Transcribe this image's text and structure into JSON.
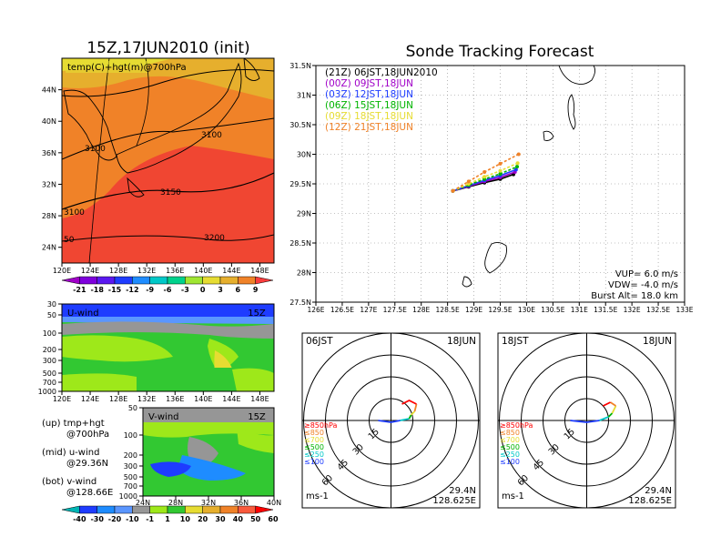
{
  "left_title": "15Z,17JUN2010 (init)",
  "right_title": "Sonde Tracking Forecast",
  "top_map": {
    "label": "temp(C)+hgt(m)@700hPa",
    "lat_ticks": [
      "44N",
      "40N",
      "36N",
      "32N",
      "28N",
      "24N"
    ],
    "lon_ticks": [
      "120E",
      "124E",
      "128E",
      "132E",
      "136E",
      "140E",
      "144E",
      "148E"
    ],
    "contour_labels": [
      "3100",
      "3100",
      "3150",
      "3100",
      "3200",
      "50"
    ]
  },
  "temp_colorbar": {
    "labels": [
      "-21",
      "-18",
      "-15",
      "-12",
      "-9",
      "-6",
      "-3",
      "0",
      "3",
      "6",
      "9"
    ],
    "colors": [
      "#a000c8",
      "#7e00dc",
      "#5a18f0",
      "#1e3cff",
      "#1e8cff",
      "#00c8c8",
      "#00d28c",
      "#a0e632",
      "#e6dc32",
      "#e6af2d",
      "#f08228",
      "#fa3c3c"
    ]
  },
  "u_panel": {
    "label": "U-wind",
    "time": "15Z",
    "p_ticks": [
      "30",
      "50",
      "100",
      "200",
      "300",
      "500",
      "700",
      "1000"
    ],
    "lon_ticks": [
      "120E",
      "124E",
      "128E",
      "132E",
      "136E",
      "140E",
      "144E",
      "148E"
    ]
  },
  "v_panel": {
    "label": "V-wind",
    "time": "15Z",
    "p_ticks": [
      "50",
      "100",
      "200",
      "300",
      "500",
      "700",
      "1000"
    ],
    "lat_ticks": [
      "24N",
      "28N",
      "32N",
      "36N",
      "40N"
    ]
  },
  "wind_colorbar": {
    "labels": [
      "-40",
      "-30",
      "-20",
      "-10",
      "-1",
      "1",
      "10",
      "20",
      "30",
      "40",
      "50",
      "60"
    ],
    "colors": [
      "#00b4b4",
      "#1e3cff",
      "#1e8cff",
      "#5a96ff",
      "#969696",
      "#9ee81a",
      "#32c832",
      "#e6dc32",
      "#e6af2d",
      "#f08228",
      "#fa5a3c",
      "#ff0000"
    ]
  },
  "side_notes": [
    "(up) tmp+hgt",
    "@700hPa",
    "(mid) u-wind",
    "@29.36N",
    "(bot) v-wind",
    "@128.66E"
  ],
  "track_map": {
    "legend": [
      {
        "text": "(21Z) 06JST,18JUN2010",
        "color": "#000000"
      },
      {
        "text": "(00Z) 09JST,18JUN",
        "color": "#a000c8"
      },
      {
        "text": "(03Z) 12JST,18JUN",
        "color": "#1e3cff"
      },
      {
        "text": "(06Z) 15JST,18JUN",
        "color": "#00b400"
      },
      {
        "text": "(09Z) 18JST,18JUN",
        "color": "#e6dc32"
      },
      {
        "text": "(12Z) 21JST,18JUN",
        "color": "#f08228"
      }
    ],
    "lat_ticks": [
      "31.5N",
      "31N",
      "30.5N",
      "30N",
      "29.5N",
      "29N",
      "28.5N",
      "28N",
      "27.5N"
    ],
    "lon_ticks": [
      "126E",
      "126.5E",
      "127E",
      "127.5E",
      "128E",
      "128.5E",
      "129E",
      "129.5E",
      "130E",
      "130.5E",
      "131E",
      "131.5E",
      "132E",
      "132.5E",
      "133E"
    ],
    "params": [
      "VUP= 6.0 m/s",
      "VDW= -4.0 m/s",
      "Burst Alt= 18.0 km"
    ]
  },
  "hodographs": [
    {
      "left_label": "06JST",
      "right_label": "18JUN",
      "rings": [
        "15",
        "30",
        "45",
        "60"
      ],
      "levels": [
        "≥850hPa",
        "≤850",
        "≤700",
        "≤500",
        "≤250",
        "≤100"
      ],
      "level_colors": [
        "#ff0000",
        "#f08228",
        "#e6dc32",
        "#00b400",
        "#00c8c8",
        "#1e3cff"
      ],
      "unit": "ms-1",
      "lat": "29.4N",
      "lon": "128.625E"
    },
    {
      "left_label": "18JST",
      "right_label": "18JUN",
      "rings": [
        "15",
        "30",
        "45",
        "60"
      ],
      "levels": [
        "≥850hPa",
        "≤850",
        "≤700",
        "≤500",
        "≤250",
        "≤100"
      ],
      "level_colors": [
        "#ff0000",
        "#f08228",
        "#e6dc32",
        "#00b400",
        "#00c8c8",
        "#1e3cff"
      ],
      "unit": "ms-1",
      "lat": "29.4N",
      "lon": "128.625E"
    }
  ],
  "chart_data": [
    {
      "type": "heatmap",
      "title": "15Z,17JUN2010 (init)",
      "variable": "temp(C)+hgt(m)@700hPa",
      "xlim": [
        120,
        150
      ],
      "ylim": [
        22,
        48
      ],
      "height_contour_values": [
        3100,
        3150,
        3200
      ]
    },
    {
      "type": "line",
      "title": "Sonde Tracking Forecast",
      "xlim": [
        126,
        133
      ],
      "ylim": [
        27.5,
        31.5
      ],
      "series": [
        {
          "name": "(21Z) 06JST,18JUN2010",
          "x": [
            128.6,
            128.9,
            129.2,
            129.5,
            129.75
          ],
          "y": [
            29.38,
            29.45,
            29.52,
            29.58,
            29.66
          ]
        },
        {
          "name": "(00Z) 09JST,18JUN",
          "x": [
            128.6,
            128.9,
            129.2,
            129.5,
            129.78
          ],
          "y": [
            29.38,
            29.46,
            29.54,
            29.61,
            29.7
          ]
        },
        {
          "name": "(03Z) 12JST,18JUN",
          "x": [
            128.6,
            128.9,
            129.2,
            129.5,
            129.8
          ],
          "y": [
            29.38,
            29.47,
            29.56,
            29.64,
            29.74
          ]
        },
        {
          "name": "(06Z) 15JST,18JUN",
          "x": [
            128.6,
            128.9,
            129.2,
            129.5,
            129.82
          ],
          "y": [
            29.38,
            29.48,
            29.58,
            29.67,
            29.79
          ]
        },
        {
          "name": "(09Z) 18JST,18JUN",
          "x": [
            128.6,
            128.9,
            129.2,
            129.5,
            129.83
          ],
          "y": [
            29.38,
            29.5,
            29.62,
            29.72,
            29.85
          ]
        },
        {
          "name": "(12Z) 21JST,18JUN",
          "x": [
            128.6,
            128.9,
            129.2,
            129.5,
            129.85
          ],
          "y": [
            29.38,
            29.54,
            29.7,
            29.84,
            30.0
          ]
        }
      ]
    }
  ]
}
